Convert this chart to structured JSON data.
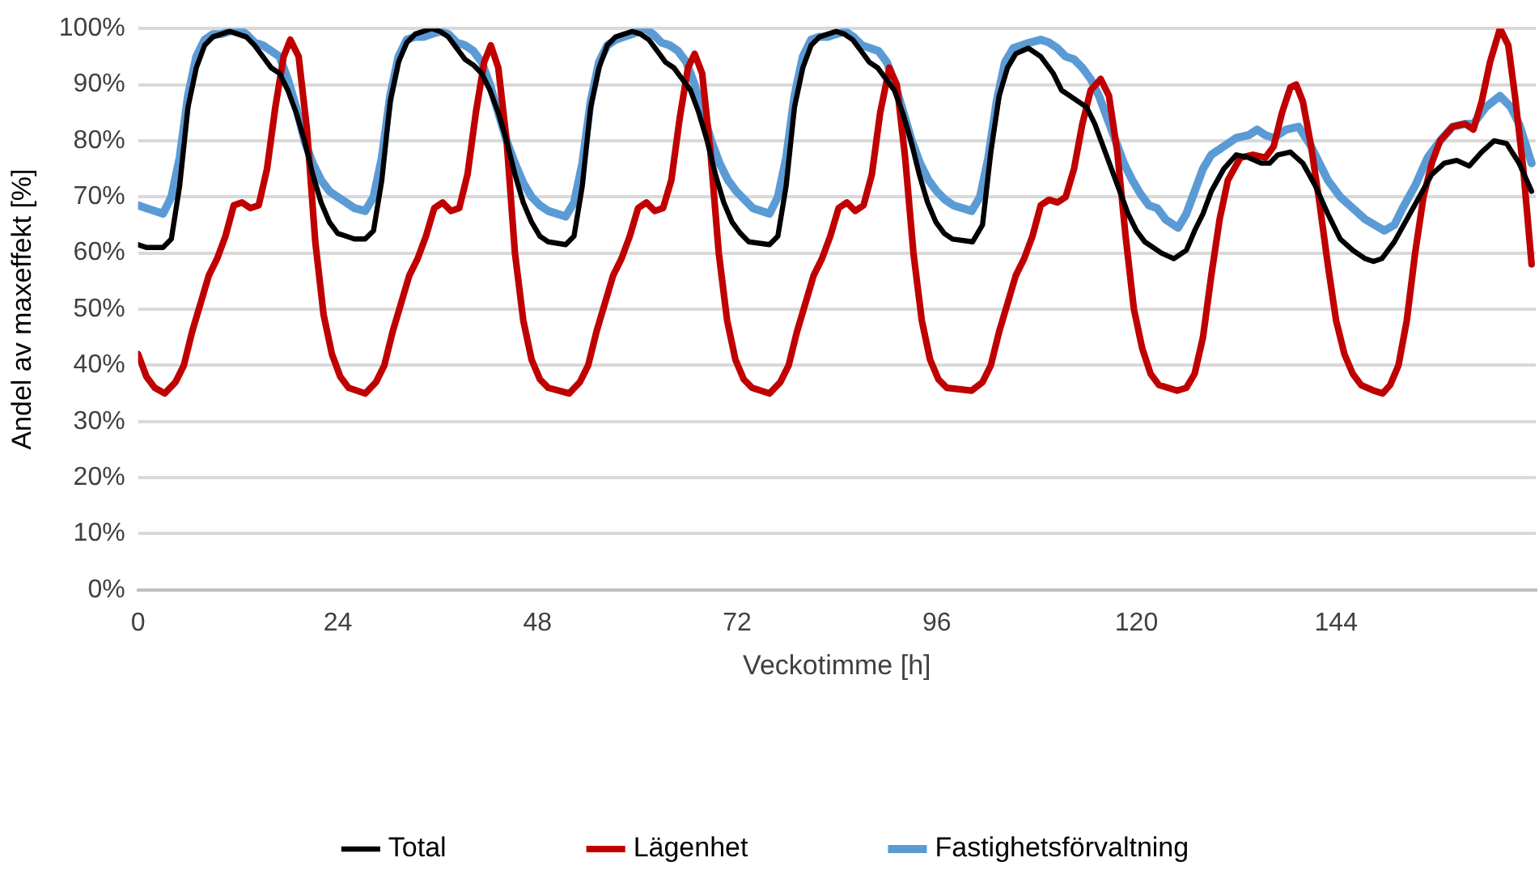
{
  "chart_data": {
    "type": "line",
    "xlabel": "Veckotimme [h]",
    "ylabel": "Andel av maxeffekt [%]",
    "xlim": [
      0,
      168
    ],
    "xticks": [
      0,
      24,
      48,
      72,
      96,
      120,
      144
    ],
    "ylim": [
      0,
      100
    ],
    "yticks": [
      {
        "value": 0,
        "label": "0%"
      },
      {
        "value": 10,
        "label": "10%"
      },
      {
        "value": 20,
        "label": "20%"
      },
      {
        "value": 30,
        "label": "30%"
      },
      {
        "value": 40,
        "label": "40%"
      },
      {
        "value": 50,
        "label": "50%"
      },
      {
        "value": 60,
        "label": "60%"
      },
      {
        "value": 70,
        "label": "70%"
      },
      {
        "value": 80,
        "label": "80%"
      },
      {
        "value": 90,
        "label": "90%"
      },
      {
        "value": 100,
        "label": "100%"
      }
    ],
    "grid": "y",
    "legend": "bottom",
    "marker": "none",
    "line_style": "solid",
    "series": [
      {
        "name": "Total",
        "color": "#000000",
        "x": [
          0,
          1,
          3,
          4,
          5,
          6,
          7,
          8,
          9,
          11,
          12,
          13,
          14,
          15,
          16,
          17,
          18,
          19,
          20,
          21,
          22,
          23,
          24,
          25,
          26,
          27.3,
          28.3,
          29.3,
          30.3,
          31.3,
          32.3,
          33.3,
          35.3,
          36.3,
          37.3,
          38.3,
          39.3,
          40.3,
          41.3,
          42.3,
          43.3,
          44.3,
          45.3,
          46.3,
          47.3,
          48.3,
          49.3,
          51.4,
          52.4,
          53.4,
          54.4,
          55.4,
          56.4,
          57.4,
          59.4,
          60.4,
          61.4,
          62.4,
          63.4,
          64.4,
          65.4,
          66.4,
          67.4,
          68.4,
          69.4,
          70.4,
          71.4,
          72.4,
          73.4,
          75.9,
          76.9,
          77.9,
          78.9,
          79.9,
          80.9,
          81.9,
          83.9,
          84.9,
          85.9,
          86.9,
          87.9,
          88.9,
          89.9,
          90.9,
          91.9,
          92.9,
          93.9,
          94.9,
          95.9,
          96.9,
          97.9,
          100.3,
          101.5,
          102.5,
          103.5,
          104.5,
          105.5,
          107,
          108.5,
          110,
          111,
          112,
          113,
          114,
          115,
          116,
          117,
          118,
          119,
          120,
          121,
          122,
          123,
          124.5,
          126,
          127,
          128,
          129,
          130.5,
          132,
          133.5,
          135,
          136,
          137,
          138.5,
          140,
          141.5,
          143,
          144.5,
          146,
          147.5,
          148.5,
          149.5,
          151,
          152.5,
          154,
          155.5,
          157,
          158.5,
          160,
          161.5,
          163,
          164.5,
          166,
          167.5
        ],
        "values": [
          61.5,
          61,
          61,
          62.5,
          72,
          86,
          93,
          97,
          98.5,
          99.5,
          99,
          98.5,
          97,
          95,
          93,
          92,
          89,
          85,
          80,
          74,
          69,
          65.5,
          63.5,
          63,
          62.5,
          62.5,
          64,
          73,
          87,
          94,
          97.5,
          99,
          100,
          99.5,
          98.5,
          96.5,
          94.5,
          93.5,
          92,
          89,
          85,
          80,
          74,
          69,
          65.5,
          63,
          62,
          61.5,
          63,
          72,
          86,
          93,
          97,
          98.5,
          99.5,
          99,
          98,
          96,
          94,
          93,
          91,
          89,
          85,
          80,
          74,
          69,
          65.5,
          63.5,
          62,
          61.5,
          63,
          72,
          86,
          93,
          97,
          98.5,
          99.5,
          99,
          98,
          96,
          94,
          93,
          91,
          89,
          85,
          80,
          74,
          69,
          65.5,
          63.5,
          62.5,
          62,
          65,
          78,
          88,
          93,
          95.5,
          96.5,
          95,
          92,
          89,
          88,
          87,
          86,
          83,
          79,
          75,
          71,
          67,
          64,
          62,
          61,
          60,
          59,
          60.5,
          64,
          67,
          71,
          75,
          77.5,
          77,
          76,
          76,
          77.5,
          78,
          76,
          72,
          67,
          62.5,
          60.5,
          59,
          58.5,
          59,
          62,
          66,
          70,
          74,
          76,
          76.5,
          75.5,
          78,
          80,
          79.5,
          76,
          71
        ]
      },
      {
        "name": "Lägenhet",
        "color": "#c00000",
        "x": [
          0,
          1,
          2,
          3.2,
          4.5,
          5.5,
          6.5,
          7.5,
          8.5,
          9.5,
          10.5,
          11.5,
          12.5,
          13.5,
          14.5,
          15.5,
          16.5,
          17.5,
          18.3,
          19.3,
          20.3,
          21.3,
          22.3,
          23.3,
          24.3,
          25.3,
          27.3,
          28.6,
          29.6,
          30.6,
          31.6,
          32.6,
          33.6,
          34.6,
          35.6,
          36.6,
          37.6,
          38.6,
          39.6,
          40.6,
          41.6,
          42.4,
          43.3,
          44.3,
          45.3,
          46.3,
          47.3,
          48.3,
          49.3,
          51.8,
          53.1,
          54.1,
          55.1,
          56.1,
          57.1,
          58.1,
          59.1,
          60.1,
          61.1,
          62.1,
          63.1,
          64.1,
          65.1,
          66.1,
          66.9,
          67.8,
          68.8,
          69.8,
          70.8,
          71.8,
          72.8,
          73.8,
          75.9,
          77.2,
          78.2,
          79.2,
          80.2,
          81.2,
          82.2,
          83.2,
          84.2,
          85.2,
          86.2,
          87.2,
          88.2,
          89.2,
          90.3,
          91.2,
          92.2,
          93.2,
          94.2,
          95.2,
          96.2,
          97.2,
          100.2,
          101.5,
          102.5,
          103.5,
          104.5,
          105.5,
          106.5,
          107.5,
          108.5,
          109.5,
          110.5,
          111.5,
          112.5,
          113.5,
          114.5,
          115.7,
          116.7,
          117.7,
          118.7,
          119.7,
          120.7,
          121.7,
          122.7,
          124.9,
          126,
          127,
          128,
          129,
          130,
          131,
          132.5,
          134,
          135.5,
          136.5,
          137.5,
          138.5,
          139.2,
          140,
          141,
          142,
          143,
          144,
          145,
          146,
          147,
          148.5,
          149.6,
          150.5,
          151.5,
          152.5,
          153.5,
          154.5,
          155.5,
          156.5,
          158,
          159.5,
          160.5,
          161.5,
          162.5,
          163.7,
          164.7,
          165.5,
          166.5,
          167.5
        ],
        "values": [
          42,
          38,
          36,
          35,
          37,
          40,
          46,
          51,
          56,
          59,
          63,
          68.5,
          69,
          68,
          68.5,
          75,
          86,
          95,
          98,
          95,
          82,
          62,
          49,
          42,
          38,
          36,
          35,
          37,
          40,
          46,
          51,
          56,
          59,
          63,
          68,
          69,
          67.5,
          68,
          74,
          85,
          94,
          97,
          93,
          80,
          60,
          48,
          41,
          37.5,
          36,
          35,
          37,
          40,
          46,
          51,
          56,
          59,
          63,
          68,
          69,
          67.5,
          68,
          73,
          84,
          93,
          95.5,
          92,
          78,
          60,
          48,
          41,
          37.5,
          36,
          35,
          37,
          40,
          46,
          51,
          56,
          59,
          63,
          68,
          69,
          67.5,
          68.5,
          74,
          85,
          93,
          90,
          77,
          60,
          48,
          41,
          37.5,
          36,
          35.5,
          37,
          40,
          46,
          51,
          56,
          59,
          63,
          68.5,
          69.5,
          69,
          70,
          75,
          83,
          89,
          91,
          88,
          78,
          63,
          50,
          43,
          38.5,
          36.5,
          35.5,
          36,
          38.5,
          45,
          56,
          66,
          73,
          77,
          77.5,
          77,
          79,
          85,
          89.5,
          90,
          87,
          79,
          69,
          58,
          48,
          42,
          38.5,
          36.5,
          35.5,
          35,
          36.5,
          40,
          48,
          60,
          70,
          76,
          80,
          82.5,
          83,
          82,
          87,
          94,
          100,
          97,
          88,
          75,
          58
        ]
      },
      {
        "name": "Fastighetsförvaltning",
        "color": "#5b9bd5",
        "x": [
          0,
          1,
          2,
          3,
          4,
          5,
          6,
          7,
          8,
          9,
          10,
          11,
          12,
          13,
          14,
          15,
          16,
          17,
          18,
          19,
          20,
          21,
          22,
          23,
          24,
          25,
          26,
          27.3,
          28.3,
          29.3,
          30.3,
          31.3,
          32.3,
          33.3,
          34.3,
          35.3,
          36.3,
          37.3,
          38.3,
          39.3,
          40.3,
          41.3,
          42.3,
          43.3,
          44.3,
          45.3,
          46.3,
          47.3,
          48.3,
          49.3,
          51.4,
          52.4,
          53.4,
          54.4,
          55.4,
          56.4,
          57.4,
          58.4,
          59.4,
          60.9,
          61.9,
          62.9,
          63.9,
          64.9,
          65.9,
          66.9,
          67.9,
          68.9,
          69.9,
          70.9,
          71.9,
          72.9,
          73.9,
          75.9,
          76.9,
          77.9,
          78.9,
          79.9,
          80.9,
          81.9,
          82.9,
          83.9,
          85,
          86,
          87,
          88,
          89,
          90,
          91,
          92,
          93,
          94,
          95,
          96,
          97,
          98,
          100.2,
          101.2,
          102.2,
          103.2,
          104.2,
          105.2,
          106.2,
          107.2,
          108.5,
          109.5,
          110.5,
          111.5,
          112.5,
          113.5,
          114.5,
          115.5,
          116.5,
          117.5,
          118.5,
          119.5,
          120.5,
          121.5,
          122.5,
          123.5,
          125,
          126,
          127,
          128,
          129,
          130.5,
          132,
          133.5,
          134.5,
          135.5,
          136.5,
          138,
          139.5,
          141,
          142,
          143,
          144.5,
          146,
          147.5,
          149.8,
          151,
          152,
          153.5,
          155,
          156.5,
          158,
          159.5,
          160.5,
          162,
          163.7,
          165,
          166,
          167.5
        ],
        "values": [
          68.5,
          68,
          67.5,
          67,
          70,
          77,
          88,
          95,
          98,
          99,
          99,
          99.5,
          100,
          99,
          97.5,
          97,
          96,
          95,
          91,
          86,
          80,
          76,
          73,
          71,
          70,
          69,
          68,
          67.5,
          70,
          77,
          88,
          95,
          98,
          98.5,
          98.5,
          99,
          99.5,
          99,
          97.5,
          97,
          96,
          94,
          90,
          85,
          80,
          76,
          72.5,
          70,
          68.5,
          67.5,
          66.5,
          69,
          76,
          87,
          94,
          97,
          98,
          98.5,
          99,
          100,
          99,
          97.5,
          97,
          96,
          94,
          90,
          85,
          80,
          76,
          73,
          71,
          69.5,
          68,
          67,
          70,
          77,
          88,
          95,
          98,
          98.5,
          98.5,
          99,
          99.5,
          98.5,
          97,
          96.5,
          96,
          94,
          90,
          85,
          80,
          76,
          73,
          71,
          69.5,
          68.5,
          67.5,
          70,
          77,
          87,
          94,
          96.5,
          97,
          97.5,
          98,
          97.5,
          96.5,
          95,
          94.5,
          93,
          91,
          88,
          84,
          80,
          76,
          73,
          70.5,
          68.5,
          68,
          66,
          64.5,
          67,
          71,
          75,
          77.5,
          79,
          80.5,
          81,
          82,
          81,
          80.5,
          82,
          82.5,
          79,
          76,
          73,
          70,
          68,
          66,
          64,
          65,
          68,
          72,
          77,
          80,
          82.5,
          83,
          83,
          86,
          88,
          86,
          83,
          76
        ]
      }
    ]
  }
}
